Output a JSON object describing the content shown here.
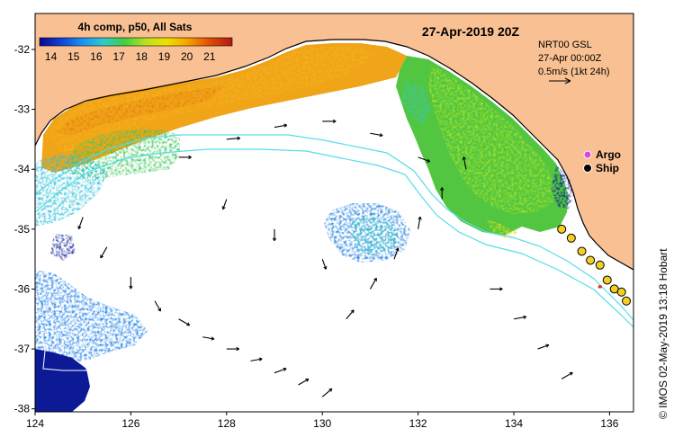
{
  "title": "27-Apr-2019 20Z",
  "colorbar": {
    "title": "4h comp, p50, All Sats",
    "ticks": [
      "14",
      "15",
      "16",
      "17",
      "18",
      "19",
      "20",
      "21"
    ],
    "range": [
      13.5,
      22.0
    ],
    "stops": [
      "#0a0a8a",
      "#1040d8",
      "#1a90f0",
      "#30c8d0",
      "#40d040",
      "#b8e020",
      "#f0e000",
      "#f8a000",
      "#e05000",
      "#b01818"
    ]
  },
  "current_info": {
    "line1": "NRT00 GSL",
    "line2": "27-Apr 00:00Z",
    "line3": "0.5m/s (1kt 24h)"
  },
  "legend": {
    "argo_label": "Argo",
    "ship_label": "Ship",
    "argo_color": "#e040e0"
  },
  "axes": {
    "x_ticks": [
      "124",
      "126",
      "128",
      "130",
      "132",
      "134",
      "136"
    ],
    "y_ticks": [
      "-32",
      "-33",
      "-34",
      "-35",
      "-36",
      "-37",
      "-38"
    ],
    "xlim": [
      124,
      136.5
    ],
    "ylim": [
      -38.05,
      -31.4
    ]
  },
  "credit": "© IMOS 02-May-2019 13:18 Hobart",
  "colors": {
    "land": "#f9c193",
    "contour": "#55dde8",
    "ship": "#f2cf22",
    "ship_marker": "#e8261a"
  },
  "ship_track": [
    {
      "lon": 135.0,
      "lat": -35.0
    },
    {
      "lon": 135.2,
      "lat": -35.15
    },
    {
      "lon": 135.42,
      "lat": -35.37
    },
    {
      "lon": 135.6,
      "lat": -35.52
    },
    {
      "lon": 135.8,
      "lat": -35.6
    },
    {
      "lon": 135.95,
      "lat": -35.85
    },
    {
      "lon": 136.1,
      "lat": -36.0
    },
    {
      "lon": 136.25,
      "lat": -36.05
    },
    {
      "lon": 136.35,
      "lat": -36.2
    }
  ],
  "current_vectors": [
    {
      "lon": 125.0,
      "lat": -34.8,
      "dir": 200,
      "speed": 0.3
    },
    {
      "lon": 125.5,
      "lat": -35.3,
      "dir": 210,
      "speed": 0.3
    },
    {
      "lon": 126.0,
      "lat": -35.8,
      "dir": 180,
      "speed": 0.25
    },
    {
      "lon": 126.5,
      "lat": -36.2,
      "dir": 150,
      "speed": 0.25
    },
    {
      "lon": 127.0,
      "lat": -36.5,
      "dir": 120,
      "speed": 0.3
    },
    {
      "lon": 127.5,
      "lat": -36.8,
      "dir": 100,
      "speed": 0.25
    },
    {
      "lon": 128.0,
      "lat": -37.0,
      "dir": 90,
      "speed": 0.3
    },
    {
      "lon": 128.5,
      "lat": -37.2,
      "dir": 80,
      "speed": 0.25
    },
    {
      "lon": 129.0,
      "lat": -37.4,
      "dir": 70,
      "speed": 0.3
    },
    {
      "lon": 129.5,
      "lat": -37.6,
      "dir": 60,
      "speed": 0.25
    },
    {
      "lon": 130.0,
      "lat": -37.8,
      "dir": 50,
      "speed": 0.3
    },
    {
      "lon": 130.5,
      "lat": -36.5,
      "dir": 40,
      "speed": 0.25
    },
    {
      "lon": 131.0,
      "lat": -36.0,
      "dir": 30,
      "speed": 0.3
    },
    {
      "lon": 131.5,
      "lat": -35.5,
      "dir": 20,
      "speed": 0.25
    },
    {
      "lon": 132.0,
      "lat": -35.0,
      "dir": 10,
      "speed": 0.3
    },
    {
      "lon": 132.5,
      "lat": -34.5,
      "dir": 0,
      "speed": 0.25
    },
    {
      "lon": 133.0,
      "lat": -34.0,
      "dir": 350,
      "speed": 0.3
    },
    {
      "lon": 127.0,
      "lat": -33.8,
      "dir": 90,
      "speed": 0.3
    },
    {
      "lon": 128.0,
      "lat": -33.5,
      "dir": 85,
      "speed": 0.35
    },
    {
      "lon": 129.0,
      "lat": -33.3,
      "dir": 80,
      "speed": 0.3
    },
    {
      "lon": 130.0,
      "lat": -33.2,
      "dir": 90,
      "speed": 0.35
    },
    {
      "lon": 131.0,
      "lat": -33.4,
      "dir": 100,
      "speed": 0.3
    },
    {
      "lon": 132.0,
      "lat": -33.8,
      "dir": 110,
      "speed": 0.3
    },
    {
      "lon": 128.0,
      "lat": -34.5,
      "dir": 200,
      "speed": 0.2
    },
    {
      "lon": 129.0,
      "lat": -35.0,
      "dir": 180,
      "speed": 0.25
    },
    {
      "lon": 130.0,
      "lat": -35.5,
      "dir": 160,
      "speed": 0.2
    },
    {
      "lon": 133.5,
      "lat": -36.0,
      "dir": 90,
      "speed": 0.3
    },
    {
      "lon": 134.0,
      "lat": -36.5,
      "dir": 80,
      "speed": 0.3
    },
    {
      "lon": 134.5,
      "lat": -37.0,
      "dir": 70,
      "speed": 0.25
    },
    {
      "lon": 135.0,
      "lat": -37.5,
      "dir": 60,
      "speed": 0.3
    }
  ]
}
